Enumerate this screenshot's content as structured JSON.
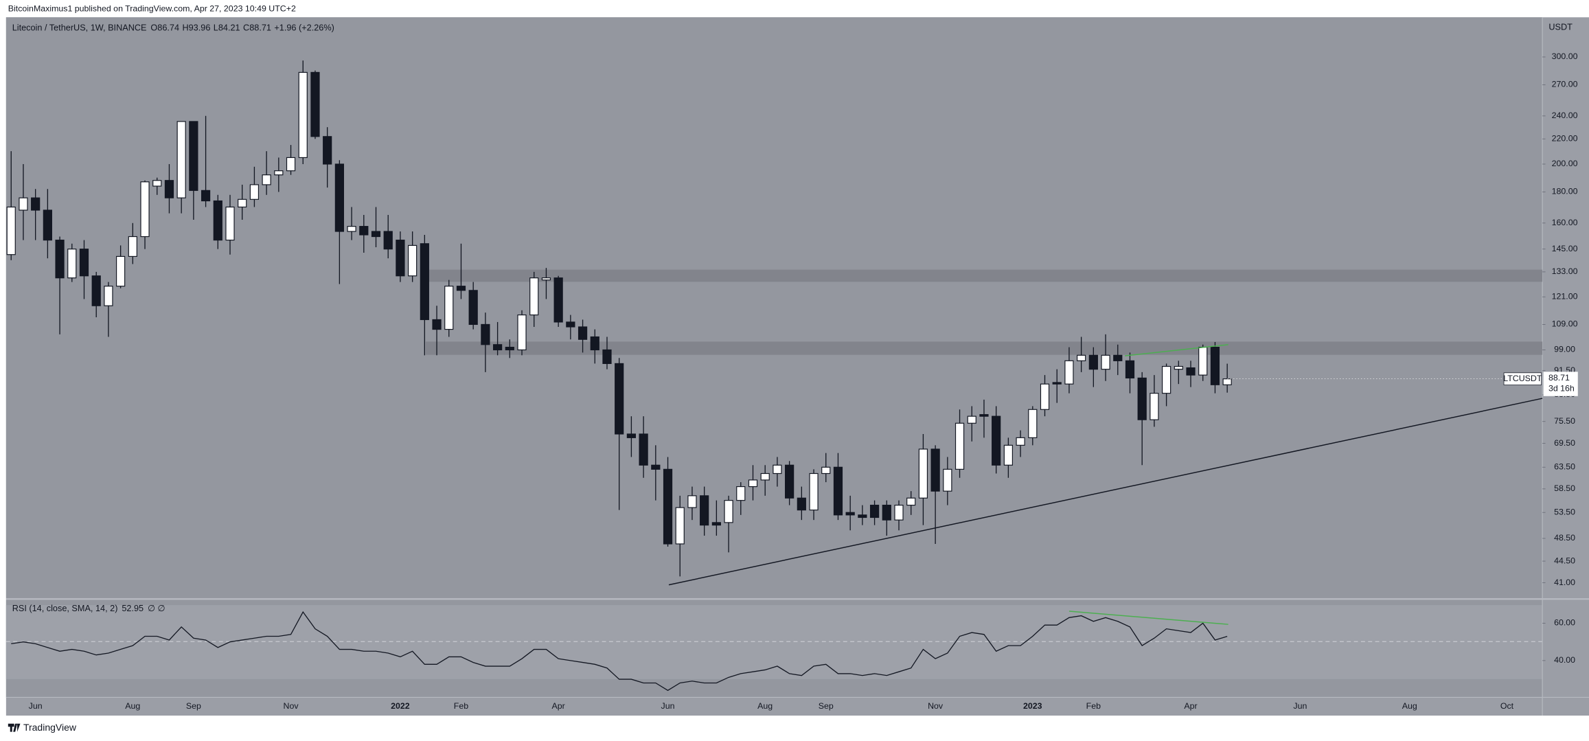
{
  "chart_data": {
    "type": "candlestick",
    "publisher": "BitcoinMaximus1 published on TradingView.com, Apr 27, 2023 10:49 UTC+2",
    "title": "Litecoin / TetherUS, 1W, BINANCE",
    "ohlc_labels": [
      "O",
      "H",
      "L",
      "C"
    ],
    "change": "+1.96 (+2.26%)",
    "symbol": "LTCUSDT",
    "countdown": "3d 16h",
    "axis_unit": "USDT",
    "brand": "TradingView",
    "log_scale": true,
    "grid": false,
    "up_color": "#ffffff",
    "down_color": "#131722",
    "categories": [
      null,
      null,
      "Jun",
      null,
      null,
      null,
      null,
      null,
      null,
      null,
      "Aug",
      null,
      null,
      null,
      null,
      "Sep",
      null,
      null,
      null,
      null,
      null,
      null,
      null,
      "Nov",
      null,
      null,
      null,
      null,
      null,
      null,
      null,
      null,
      "2022",
      null,
      null,
      null,
      null,
      "Feb",
      null,
      null,
      null,
      null,
      null,
      null,
      null,
      "Apr",
      null,
      null,
      null,
      null,
      null,
      null,
      null,
      null,
      "Jun",
      null,
      null,
      null,
      null,
      null,
      null,
      null,
      "Aug",
      null,
      null,
      null,
      null,
      "Sep",
      null,
      null,
      null,
      null,
      null,
      null,
      null,
      null,
      "Nov",
      null,
      null,
      null,
      null,
      null,
      null,
      null,
      "2023",
      null,
      null,
      null,
      null,
      "Feb",
      null,
      null,
      null,
      null,
      null,
      null,
      null,
      "Apr",
      null,
      null,
      null,
      null,
      null,
      null,
      null,
      null,
      "Jun",
      null,
      null,
      null,
      null,
      null,
      null,
      null,
      null,
      "Aug",
      null,
      null,
      null,
      null,
      null,
      null,
      null,
      "Oct",
      null,
      null
    ],
    "open": [
      142,
      168,
      176,
      168,
      150,
      130,
      145,
      131,
      117,
      126,
      141,
      152,
      184,
      188,
      176,
      235,
      181,
      174,
      150,
      170,
      175,
      185,
      192,
      195,
      205,
      283,
      222,
      200,
      155,
      158,
      155,
      155,
      150,
      131,
      148,
      111,
      107,
      126,
      124,
      109,
      101,
      100,
      99,
      113,
      129,
      130,
      110,
      108,
      104,
      99,
      94,
      72,
      72,
      64,
      63,
      47.5,
      54.5,
      57,
      51.5,
      51.5,
      56,
      59,
      60.5,
      62,
      64,
      56.5,
      54,
      62,
      63.5,
      53.5,
      53,
      55,
      55,
      52,
      55,
      56.5,
      68,
      58,
      63,
      75,
      77.5,
      77,
      64,
      69,
      71,
      79,
      87.5,
      87,
      95,
      97,
      92,
      97,
      95,
      89,
      76,
      84,
      92,
      92.5,
      90,
      100,
      86.74,
      null,
      null,
      null,
      null,
      null,
      null,
      null,
      null,
      null,
      null,
      null,
      null,
      null,
      null,
      null,
      null,
      null,
      null,
      null,
      null,
      null,
      null,
      null,
      null,
      null
    ],
    "high": [
      210,
      200,
      182,
      182,
      152,
      148,
      150,
      133,
      128,
      147,
      160,
      188,
      190,
      200,
      235,
      235,
      240,
      178,
      178,
      185,
      198,
      210,
      205,
      215,
      296,
      285,
      230,
      203,
      170,
      165,
      170,
      165,
      155,
      155,
      153,
      117,
      129,
      148,
      128,
      114,
      110,
      103,
      115,
      133,
      135,
      131,
      113,
      111,
      107,
      104,
      96,
      77,
      77,
      69,
      66,
      57,
      59,
      59,
      56,
      57,
      60,
      64,
      64,
      66,
      65,
      59,
      63,
      67,
      67,
      57,
      55,
      56,
      56,
      56,
      58,
      72,
      69,
      66,
      79,
      80,
      82,
      80,
      71,
      73,
      80,
      90,
      92,
      100,
      104,
      100,
      105,
      101,
      98,
      91,
      90,
      94,
      95,
      95,
      101,
      102,
      93.96,
      null,
      null,
      null,
      null,
      null,
      null,
      null,
      null,
      null,
      null,
      null,
      null,
      null,
      null,
      null,
      null,
      null,
      null,
      null,
      null,
      null,
      null,
      null,
      null,
      null
    ],
    "low": [
      139,
      150,
      150,
      140,
      105,
      128,
      120,
      112,
      104,
      125,
      137,
      145,
      178,
      166,
      166,
      162,
      170,
      145,
      142,
      162,
      170,
      178,
      180,
      192,
      200,
      220,
      183,
      127,
      150,
      143,
      146,
      140,
      128,
      128,
      97,
      97,
      104,
      120,
      107,
      91,
      97,
      96,
      97,
      108,
      120,
      108,
      103,
      98,
      94,
      92,
      54,
      66,
      61,
      56,
      47,
      42,
      52,
      49,
      49,
      46,
      53,
      56,
      57,
      59,
      55,
      52,
      52,
      60,
      52,
      50,
      51,
      51,
      49,
      50,
      53,
      51,
      47.5,
      55,
      61,
      70,
      71,
      62,
      61,
      66,
      69,
      77,
      81,
      84,
      91,
      86,
      88,
      90,
      84,
      64,
      74,
      80,
      87,
      86,
      88,
      84,
      84.21,
      null,
      null,
      null,
      null,
      null,
      null,
      null,
      null,
      null,
      null,
      null,
      null,
      null,
      null,
      null,
      null,
      null,
      null,
      null,
      null,
      null,
      null,
      null,
      null,
      null
    ],
    "close": [
      170,
      176,
      168,
      150,
      130,
      145,
      131,
      117,
      126,
      141,
      152,
      187,
      188,
      176,
      235,
      181,
      174,
      150,
      170,
      175,
      185,
      192,
      195,
      205,
      283,
      222,
      200,
      155,
      158,
      153,
      152,
      145,
      131,
      147,
      111,
      107,
      126,
      124,
      109,
      101,
      99,
      99,
      113,
      130,
      130,
      110,
      108,
      103,
      99,
      94,
      72,
      71,
      64,
      63,
      47.5,
      54.5,
      57,
      51,
      51,
      56,
      59,
      60.5,
      62,
      64,
      56.5,
      54,
      62,
      63.5,
      53,
      53,
      52.5,
      52.5,
      52,
      55,
      56.5,
      68,
      58,
      63,
      75,
      77,
      77,
      64,
      69,
      71,
      79,
      87,
      87,
      95,
      97,
      92,
      97,
      95,
      89,
      76,
      84,
      93,
      93,
      90,
      100,
      86.75,
      88.71,
      null,
      null,
      null,
      null,
      null,
      null,
      null,
      null,
      null,
      null,
      null,
      null,
      null,
      null,
      null,
      null,
      null,
      null,
      null,
      null,
      null,
      null,
      null,
      null,
      null
    ],
    "ylim": [
      38.7,
      348.6
    ],
    "yticks": [
      {
        "value": 300,
        "label": "300.00"
      },
      {
        "value": 270,
        "label": "270.00"
      },
      {
        "value": 240,
        "label": "240.00"
      },
      {
        "value": 220,
        "label": "220.00"
      },
      {
        "value": 200,
        "label": "200.00"
      },
      {
        "value": 180,
        "label": "180.00"
      },
      {
        "value": 160,
        "label": "160.00"
      },
      {
        "value": 145,
        "label": "145.00"
      },
      {
        "value": 133,
        "label": "133.00"
      },
      {
        "value": 121,
        "label": "121.00"
      },
      {
        "value": 109,
        "label": "109.00"
      },
      {
        "value": 99,
        "label": "99.00"
      },
      {
        "value": 91.5,
        "label": "91.50"
      },
      {
        "value": 83.5,
        "label": "83.50"
      },
      {
        "value": 75.5,
        "label": "75.50"
      },
      {
        "value": 69.5,
        "label": "69.50"
      },
      {
        "value": 63.5,
        "label": "63.50"
      },
      {
        "value": 58.5,
        "label": "58.50"
      },
      {
        "value": 53.5,
        "label": "53.50"
      },
      {
        "value": 48.5,
        "label": "48.50"
      },
      {
        "value": 44.5,
        "label": "44.50"
      },
      {
        "value": 41,
        "label": "41.00"
      }
    ],
    "rsi": {
      "title": "RSI (14, close, SMA, 14, 2)",
      "placeholders": "∅ ∅",
      "color": "#131722",
      "values": [
        49,
        50,
        49,
        47,
        45,
        46,
        45,
        43,
        44,
        46,
        48,
        53,
        53,
        51,
        58,
        52,
        51,
        47,
        50,
        51,
        52,
        53,
        53,
        54,
        66,
        57,
        53,
        46,
        46,
        45,
        45,
        44,
        42,
        45,
        38,
        38,
        42,
        42,
        39,
        37,
        37,
        37,
        41,
        46,
        46,
        41,
        40,
        39,
        38,
        36,
        30,
        30,
        28,
        28,
        24,
        28,
        29,
        28,
        28,
        31,
        33,
        34,
        35,
        37,
        33,
        32,
        37,
        38,
        33,
        33,
        32,
        33,
        32,
        34,
        36,
        46,
        41,
        44,
        53,
        55,
        54,
        45,
        48,
        48,
        53,
        59,
        59,
        63,
        64,
        61,
        63,
        61,
        58,
        48,
        52,
        57,
        56,
        55,
        60,
        51,
        52.95,
        null,
        null,
        null,
        null,
        null,
        null,
        null,
        null,
        null,
        null,
        null,
        null,
        null,
        null,
        null,
        null,
        null,
        null,
        null,
        null,
        null,
        null,
        null,
        null,
        null
      ],
      "ylim": [
        20.3,
        72.4
      ],
      "yticks": [
        {
          "value": 60,
          "label": "60.00"
        },
        {
          "value": 40,
          "label": "40.00"
        }
      ]
    }
  }
}
